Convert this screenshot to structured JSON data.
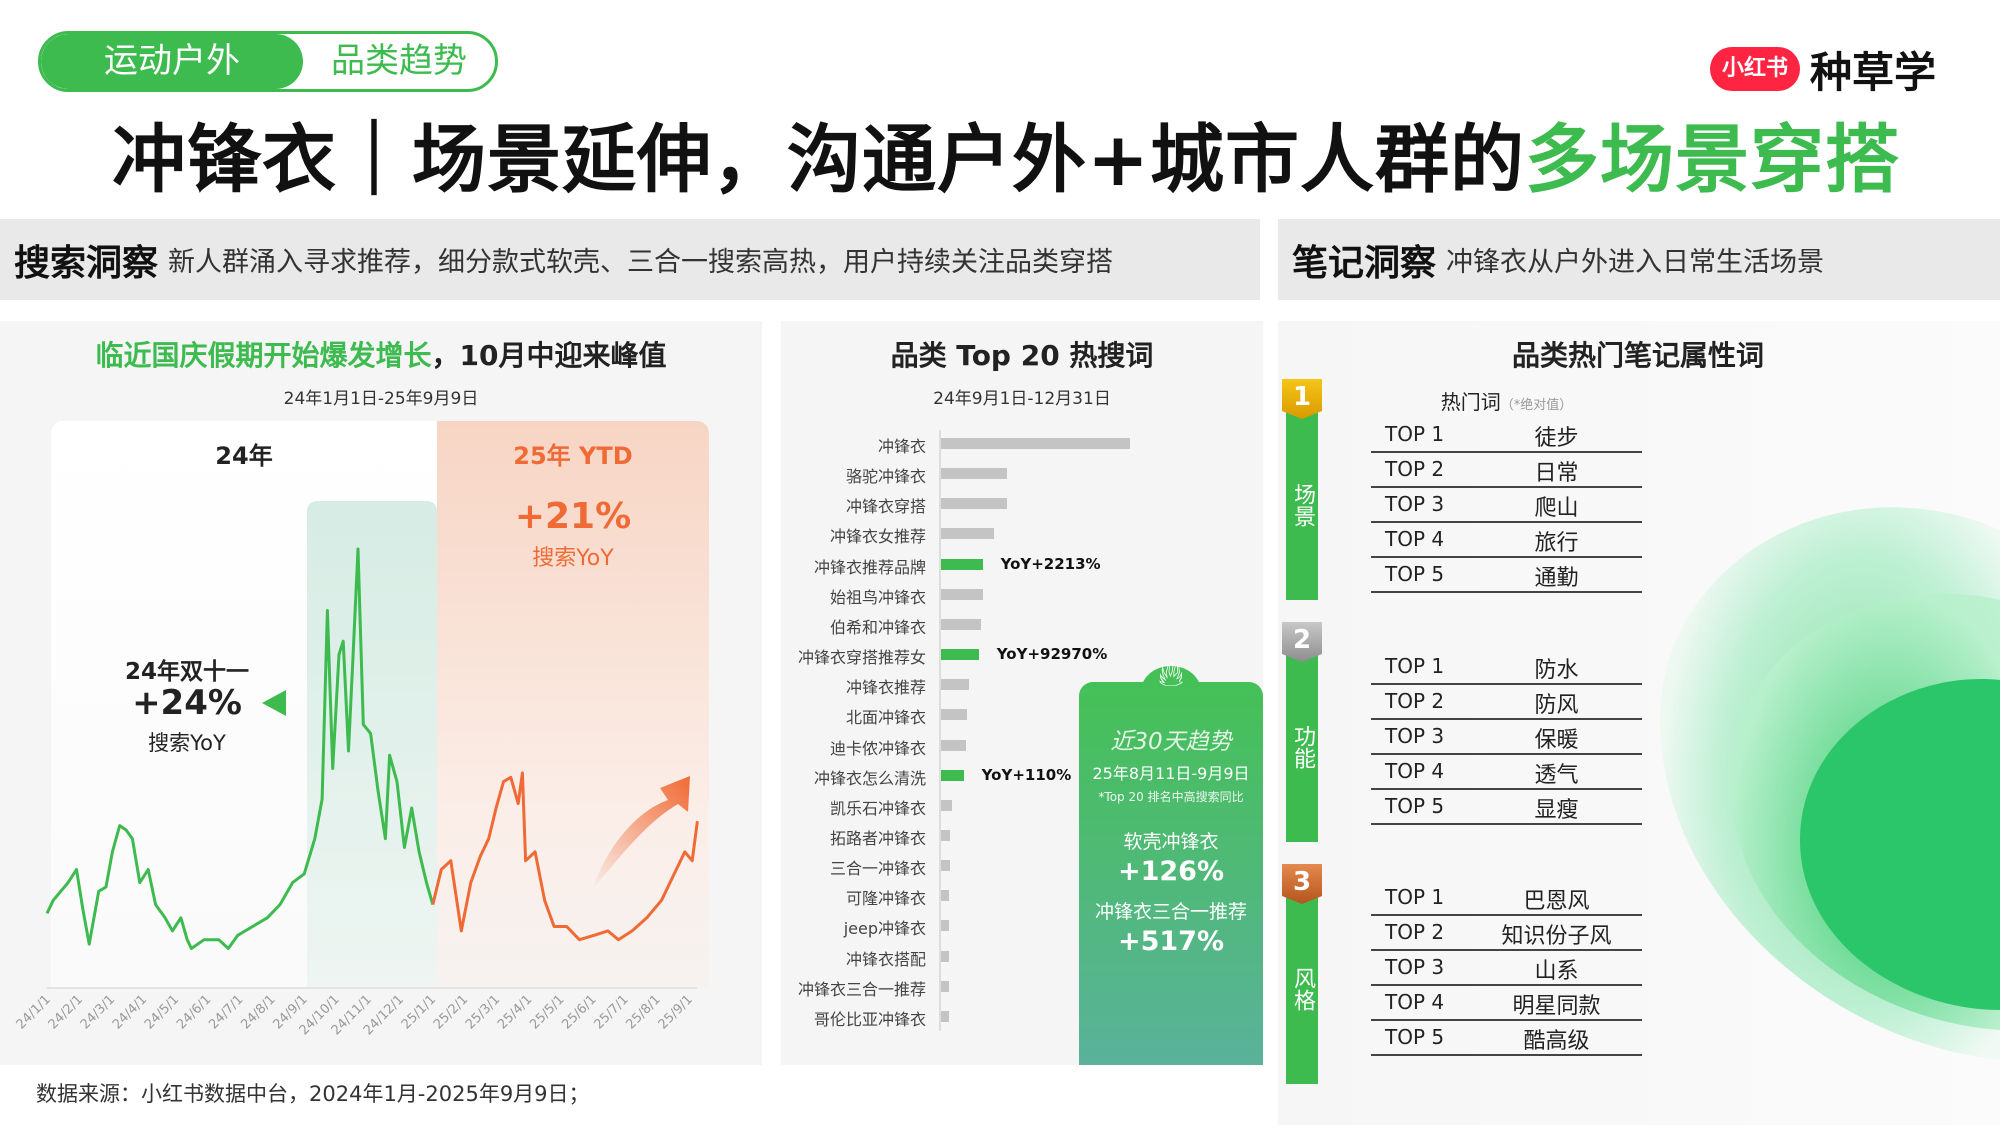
{
  "header": {
    "tag_primary": "运动户外",
    "tag_secondary": "品类趋势",
    "logo_badge": "小红书",
    "logo_text": "种草学",
    "title_main": "冲锋衣｜场景延伸，沟通户外+城市人群的",
    "title_highlight": "多场景穿搭"
  },
  "insights": {
    "search_label": "搜索洞察",
    "search_text": "新人群涌入寻求推荐，细分款式软壳、三合一搜索高热，用户持续关注品类穿搭",
    "note_label": "笔记洞察",
    "note_text": "冲锋衣从户外进入日常生活场景"
  },
  "colors": {
    "green": "#3dbb4f",
    "orange": "#f06a35",
    "gray_bar": "#c4c4c4"
  },
  "left": {
    "title_highlight": "临近国庆假期开始爆发增长",
    "title_rest": "，10月中迎来峰值",
    "subtitle": "24年1月1日-25年9月9日",
    "label_24": "24年",
    "label_25": "25年 YTD",
    "yoy25_value": "+21%",
    "yoy25_label": "搜索YoY",
    "d11_title": "24年双十一",
    "d11_value": "+24%",
    "d11_label": "搜索YoY"
  },
  "middle": {
    "title": "品类 Top 20 热搜词",
    "subtitle": "24年9月1日-12月31日",
    "card": {
      "title": "近30天趋势",
      "date": "25年8月11日-9月9日",
      "note": "*Top 20 排名中高搜索同比",
      "item1": "软壳冲锋衣",
      "value1": "+126%",
      "item2": "冲锋衣三合一推荐",
      "value2": "+517%"
    }
  },
  "right": {
    "title": "品类热门笔记属性词",
    "col_header": "热门词",
    "col_note": "（*绝对值）",
    "groups": [
      {
        "num": "1",
        "label": "场景",
        "rows": [
          [
            "TOP 1",
            "徒步"
          ],
          [
            "TOP 2",
            "日常"
          ],
          [
            "TOP 3",
            "爬山"
          ],
          [
            "TOP 4",
            "旅行"
          ],
          [
            "TOP 5",
            "通勤"
          ]
        ]
      },
      {
        "num": "2",
        "label": "功能",
        "rows": [
          [
            "TOP 1",
            "防水"
          ],
          [
            "TOP 2",
            "防风"
          ],
          [
            "TOP 3",
            "保暖"
          ],
          [
            "TOP 4",
            "透气"
          ],
          [
            "TOP 5",
            "显瘦"
          ]
        ]
      },
      {
        "num": "3",
        "label": "风格",
        "rows": [
          [
            "TOP 1",
            "巴恩风"
          ],
          [
            "TOP 2",
            "知识份子风"
          ],
          [
            "TOP 3",
            "山系"
          ],
          [
            "TOP 4",
            "明星同款"
          ],
          [
            "TOP 5",
            "酷高级"
          ]
        ]
      }
    ]
  },
  "footer": "数据来源：小红书数据中台，2024年1月-2025年9月9日；",
  "chart_data": [
    {
      "type": "line",
      "title": "临近国庆假期开始爆发增长，10月中迎来峰值",
      "subtitle": "24年1月1日-25年9月9日",
      "xticks": [
        "24/1/1",
        "24/2/1",
        "24/3/1",
        "24/4/1",
        "24/5/1",
        "24/6/1",
        "24/7/1",
        "24/8/1",
        "24/9/1",
        "24/10/1",
        "24/11/1",
        "24/12/1",
        "25/1/1",
        "25/2/1",
        "25/3/1",
        "25/4/1",
        "25/5/1",
        "25/6/1",
        "25/7/1",
        "25/8/1",
        "25/9/1"
      ],
      "y_axis_shown": false,
      "grid": false,
      "series": [
        {
          "segment": "24年",
          "color": "#3dbb4f",
          "points": [
            [
              "2024-01-01",
              17
            ],
            [
              "2024-01-07",
              20
            ],
            [
              "2024-01-21",
              24
            ],
            [
              "2024-01-29",
              27
            ],
            [
              "2024-02-04",
              18
            ],
            [
              "2024-02-10",
              10
            ],
            [
              "2024-02-19",
              22
            ],
            [
              "2024-02-26",
              23
            ],
            [
              "2024-03-03",
              31
            ],
            [
              "2024-03-10",
              37
            ],
            [
              "2024-03-16",
              36
            ],
            [
              "2024-03-22",
              34
            ],
            [
              "2024-03-29",
              24
            ],
            [
              "2024-04-06",
              27
            ],
            [
              "2024-04-13",
              19
            ],
            [
              "2024-04-22",
              16
            ],
            [
              "2024-04-29",
              13
            ],
            [
              "2024-05-07",
              16
            ],
            [
              "2024-05-13",
              11
            ],
            [
              "2024-05-17",
              9
            ],
            [
              "2024-05-29",
              11
            ],
            [
              "2024-06-12",
              11
            ],
            [
              "2024-06-21",
              9
            ],
            [
              "2024-06-30",
              12
            ],
            [
              "2024-07-14",
              14
            ],
            [
              "2024-07-28",
              16
            ],
            [
              "2024-08-09",
              19
            ],
            [
              "2024-08-21",
              24
            ],
            [
              "2024-09-01",
              26
            ],
            [
              "2024-09-11",
              34
            ],
            [
              "2024-09-18",
              43
            ],
            [
              "2024-09-23",
              86
            ],
            [
              "2024-09-28",
              50
            ],
            [
              "2024-10-04",
              76
            ],
            [
              "2024-10-08",
              79
            ],
            [
              "2024-10-13",
              54
            ],
            [
              "2024-10-17",
              74
            ],
            [
              "2024-10-22",
              100
            ],
            [
              "2024-10-27",
              60
            ],
            [
              "2024-11-03",
              58
            ],
            [
              "2024-11-10",
              45
            ],
            [
              "2024-11-17",
              34
            ],
            [
              "2024-11-21",
              53
            ],
            [
              "2024-11-28",
              47
            ],
            [
              "2024-12-05",
              32
            ],
            [
              "2024-12-12",
              41
            ],
            [
              "2024-12-19",
              31
            ],
            [
              "2024-12-26",
              24
            ],
            [
              "2025-01-01",
              19
            ]
          ]
        },
        {
          "segment": "25年 YTD",
          "color": "#f06a35",
          "points": [
            [
              "2025-01-01",
              19
            ],
            [
              "2025-01-09",
              27
            ],
            [
              "2025-01-18",
              29
            ],
            [
              "2025-01-28",
              13
            ],
            [
              "2025-02-06",
              24
            ],
            [
              "2025-02-15",
              30
            ],
            [
              "2025-02-23",
              34
            ],
            [
              "2025-03-02",
              41
            ],
            [
              "2025-03-09",
              47
            ],
            [
              "2025-03-16",
              48
            ],
            [
              "2025-03-23",
              42
            ],
            [
              "2025-03-27",
              49
            ],
            [
              "2025-03-30",
              29
            ],
            [
              "2025-04-08",
              31
            ],
            [
              "2025-04-17",
              20
            ],
            [
              "2025-04-26",
              14
            ],
            [
              "2025-05-08",
              14
            ],
            [
              "2025-05-20",
              11
            ],
            [
              "2025-06-03",
              12
            ],
            [
              "2025-06-16",
              13
            ],
            [
              "2025-06-26",
              11
            ],
            [
              "2025-07-09",
              13
            ],
            [
              "2025-07-23",
              16
            ],
            [
              "2025-08-06",
              20
            ],
            [
              "2025-08-18",
              26
            ],
            [
              "2025-08-28",
              31
            ],
            [
              "2025-09-04",
              29
            ],
            [
              "2025-09-09",
              38
            ]
          ]
        }
      ]
    },
    {
      "type": "bar",
      "orientation": "horizontal",
      "title": "品类 Top 20 热搜词",
      "subtitle": "24年9月1日-12月31日",
      "x_axis_shown": false,
      "categories": [
        "冲锋衣",
        "骆驼冲锋衣",
        "冲锋衣穿搭",
        "冲锋衣女推荐",
        "冲锋衣推荐品牌",
        "始祖鸟冲锋衣",
        "伯希和冲锋衣",
        "冲锋衣穿搭推荐女",
        "冲锋衣推荐",
        "北面冲锋衣",
        "迪卡侬冲锋衣",
        "冲锋衣怎么清洗",
        "凯乐石冲锋衣",
        "拓路者冲锋衣",
        "三合一冲锋衣",
        "可隆冲锋衣",
        "jeep冲锋衣",
        "冲锋衣搭配",
        "冲锋衣三合一推荐",
        "哥伦比亚冲锋衣"
      ],
      "values": [
        100,
        35,
        35,
        28,
        22,
        22,
        21,
        20,
        15,
        14,
        13,
        12,
        6,
        5,
        5,
        4,
        4,
        4,
        4,
        4
      ],
      "highlighted": [
        false,
        false,
        false,
        false,
        true,
        false,
        false,
        true,
        false,
        false,
        false,
        true,
        false,
        false,
        false,
        false,
        false,
        false,
        false,
        false
      ],
      "annotations": [
        "",
        "",
        "",
        "",
        "YoY+2213%",
        "",
        "",
        "YoY+92970%",
        "",
        "",
        "",
        "YoY+110%",
        "",
        "",
        "",
        "",
        "",
        "",
        "",
        ""
      ]
    }
  ]
}
